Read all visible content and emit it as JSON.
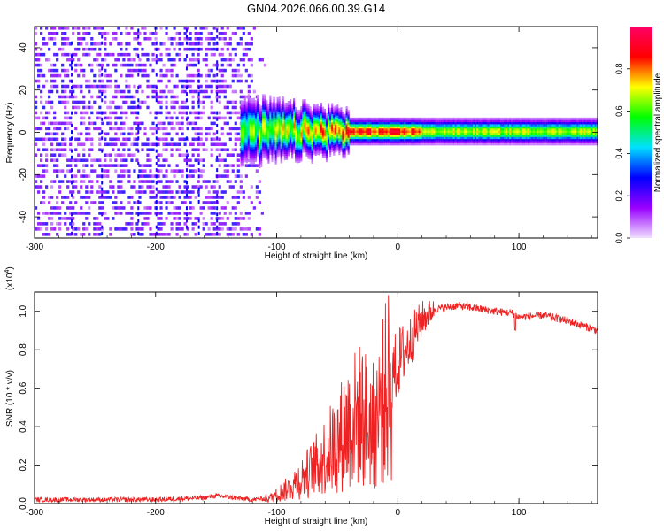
{
  "title": "GN04.2026.066.00.39.G14",
  "chart_data": [
    {
      "type": "heatmap",
      "xlabel": "Height of straight line (km)",
      "ylabel": "Frequency (Hz)",
      "xlim": [
        -300,
        165
      ],
      "ylim": [
        -50,
        50
      ],
      "xticks": [
        -300,
        -200,
        -100,
        0,
        100
      ],
      "yticks": [
        -40,
        -20,
        0,
        20,
        40
      ],
      "colorbar": {
        "label": "Normalized spectral amplitude",
        "range": [
          0,
          1
        ],
        "ticks": [
          "0.0",
          "0.2",
          "0.4",
          "0.6",
          "0.8"
        ],
        "colors": [
          "#f0e0ff",
          "#9900ff",
          "#0000ff",
          "#00e0ff",
          "#00ff00",
          "#ffff00",
          "#ff0000",
          "#ff0066"
        ]
      },
      "description_values": {
        "noise_region_x": [
          -300,
          -110
        ],
        "signal_band_x": [
          -130,
          165
        ],
        "signal_band_frequency": [
          -4,
          3
        ],
        "signal_peak_frequency": 0
      }
    },
    {
      "type": "line",
      "xlabel": "Height of straight line (km)",
      "ylabel": "SNR (10 * v/v)",
      "y_multiplier": "(x10",
      "y_multiplier_exp": "4",
      "y_multiplier_close": ")",
      "xlim": [
        -300,
        165
      ],
      "ylim": [
        0,
        1.1
      ],
      "xticks": [
        -300,
        -200,
        -100,
        0,
        100
      ],
      "yticks": [
        "0.0",
        "0.2",
        "0.4",
        "0.6",
        "0.8",
        "1.0"
      ],
      "line_color": "#ee2222",
      "series": [
        {
          "x": [
            -300,
            -250,
            -200,
            -160,
            -150,
            -120,
            -105,
            -90,
            -80,
            -70,
            -60,
            -50,
            -40,
            -30,
            -20,
            -12,
            -5,
            0,
            10,
            20,
            30,
            40,
            50,
            60,
            80,
            95,
            100,
            120,
            140,
            165
          ],
          "values": [
            0.02,
            0.02,
            0.02,
            0.03,
            0.04,
            0.02,
            0.03,
            0.08,
            0.13,
            0.18,
            0.25,
            0.32,
            0.42,
            0.46,
            0.4,
            0.54,
            0.65,
            0.73,
            0.84,
            0.96,
            1.01,
            1.02,
            1.03,
            1.02,
            1.0,
            0.99,
            0.97,
            0.98,
            0.95,
            0.9
          ]
        }
      ]
    }
  ]
}
